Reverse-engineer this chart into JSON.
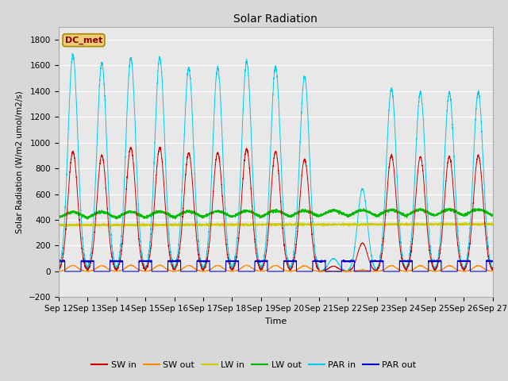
{
  "title": "Solar Radiation",
  "ylabel": "Solar Radiation (W/m2 umol/m2/s)",
  "xlabel": "Time",
  "ylim": [
    -200,
    1900
  ],
  "yticks": [
    -200,
    0,
    200,
    400,
    600,
    800,
    1000,
    1200,
    1400,
    1600,
    1800
  ],
  "xtick_labels": [
    "Sep 12",
    "Sep 13",
    "Sep 14",
    "Sep 15",
    "Sep 16",
    "Sep 17",
    "Sep 18",
    "Sep 19",
    "Sep 20",
    "Sep 21",
    "Sep 22",
    "Sep 23",
    "Sep 24",
    "Sep 25",
    "Sep 26",
    "Sep 27"
  ],
  "fig_bg_color": "#d8d8d8",
  "plot_bg_color": "#e8e8e8",
  "line_colors": {
    "SW_in": "#cc0000",
    "SW_out": "#ff8800",
    "LW_in": "#cccc00",
    "LW_out": "#00bb00",
    "PAR_in": "#00ccee",
    "PAR_out": "#0000cc"
  },
  "legend_label": "DC_met",
  "legend_box_facecolor": "#eecc77",
  "legend_box_edgecolor": "#aa8800",
  "legend_text_color": "#880000",
  "num_days": 15,
  "sw_peaks": [
    930,
    900,
    960,
    960,
    920,
    920,
    950,
    930,
    870,
    40,
    220,
    900,
    890,
    890,
    900
  ],
  "par_peaks": [
    1680,
    1620,
    1660,
    1660,
    1580,
    1580,
    1630,
    1590,
    1510,
    100,
    640,
    1420,
    1390,
    1390,
    1390
  ],
  "lw_in_base": 360,
  "lw_out_base": 400,
  "par_out_night": 80
}
